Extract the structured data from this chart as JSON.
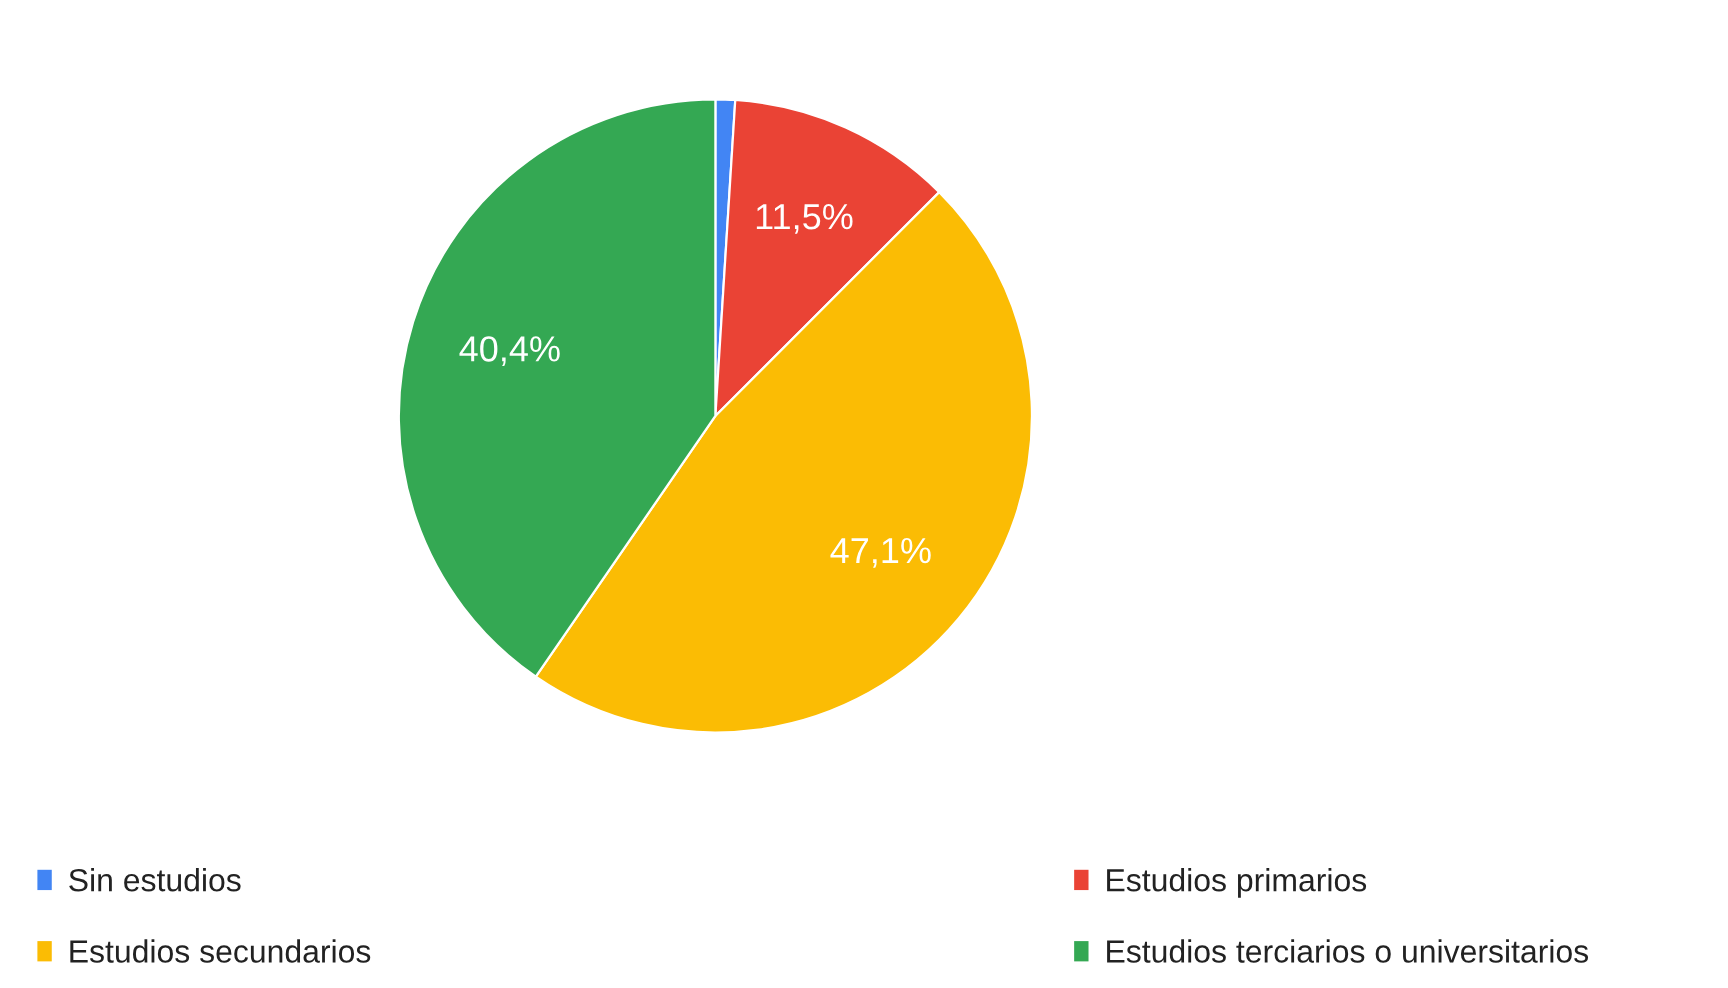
{
  "chart_data": {
    "type": "pie",
    "categories": [
      "Sin estudios",
      "Estudios primarios",
      "Estudios secundarios",
      "Estudios terciarios o universitarios"
    ],
    "values": [
      1.0,
      11.5,
      47.1,
      40.4
    ],
    "value_labels": [
      null,
      "11,5%",
      "47,1%",
      "40,4%"
    ],
    "colors": [
      "#4285f4",
      "#ea4335",
      "#fbbc04",
      "#34a853"
    ],
    "legend": "bottom"
  }
}
